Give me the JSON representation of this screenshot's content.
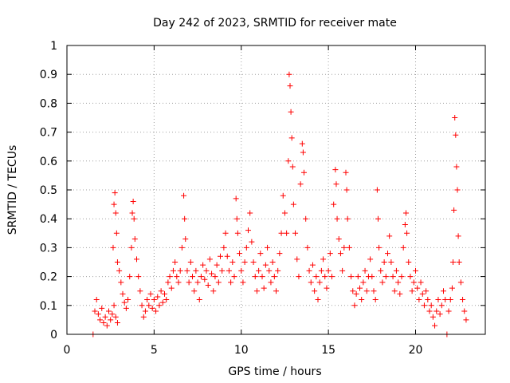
{
  "chart_data": {
    "type": "scatter",
    "title": "Day 242 of 2023, SRMTID for receiver mate",
    "xlabel": "GPS time / hours",
    "ylabel": "SRMTID / TECUs",
    "xlim": [
      0,
      24
    ],
    "ylim": [
      0,
      1
    ],
    "x_ticks": [
      "0",
      "5",
      "10",
      "15",
      "20"
    ],
    "x_tick_values": [
      0,
      5,
      10,
      15,
      20
    ],
    "y_ticks": [
      "0",
      "0.1",
      "0.2",
      "0.3",
      "0.4",
      "0.5",
      "0.6",
      "0.7",
      "0.8",
      "0.9",
      "1"
    ],
    "y_tick_values": [
      0,
      0.1,
      0.2,
      0.3,
      0.4,
      0.5,
      0.6,
      0.7,
      0.8,
      0.9,
      1
    ],
    "grid": true,
    "marker": "+",
    "color": "#ff0000",
    "series": [
      {
        "name": "SRMTID",
        "points": [
          [
            1.5,
            0.0
          ],
          [
            1.6,
            0.08
          ],
          [
            1.7,
            0.12
          ],
          [
            1.8,
            0.07
          ],
          [
            1.9,
            0.05
          ],
          [
            2.0,
            0.09
          ],
          [
            2.1,
            0.04
          ],
          [
            2.2,
            0.06
          ],
          [
            2.3,
            0.03
          ],
          [
            2.4,
            0.08
          ],
          [
            2.5,
            0.05
          ],
          [
            2.6,
            0.07
          ],
          [
            2.7,
            0.1
          ],
          [
            2.8,
            0.06
          ],
          [
            2.9,
            0.04
          ],
          [
            2.65,
            0.3
          ],
          [
            2.7,
            0.45
          ],
          [
            2.75,
            0.49
          ],
          [
            2.8,
            0.42
          ],
          [
            2.85,
            0.35
          ],
          [
            2.9,
            0.25
          ],
          [
            3.0,
            0.22
          ],
          [
            3.1,
            0.18
          ],
          [
            3.2,
            0.14
          ],
          [
            3.3,
            0.11
          ],
          [
            3.4,
            0.09
          ],
          [
            3.5,
            0.12
          ],
          [
            3.6,
            0.2
          ],
          [
            3.7,
            0.3
          ],
          [
            3.75,
            0.42
          ],
          [
            3.8,
            0.46
          ],
          [
            3.85,
            0.4
          ],
          [
            3.9,
            0.33
          ],
          [
            4.0,
            0.26
          ],
          [
            4.1,
            0.2
          ],
          [
            4.2,
            0.15
          ],
          [
            4.3,
            0.1
          ],
          [
            4.4,
            0.06
          ],
          [
            4.5,
            0.08
          ],
          [
            4.6,
            0.12
          ],
          [
            4.7,
            0.1
          ],
          [
            4.8,
            0.14
          ],
          [
            4.9,
            0.09
          ],
          [
            5.0,
            0.12
          ],
          [
            5.1,
            0.08
          ],
          [
            5.2,
            0.13
          ],
          [
            5.3,
            0.1
          ],
          [
            5.4,
            0.15
          ],
          [
            5.5,
            0.11
          ],
          [
            5.6,
            0.14
          ],
          [
            5.7,
            0.12
          ],
          [
            5.8,
            0.18
          ],
          [
            5.9,
            0.2
          ],
          [
            6.0,
            0.16
          ],
          [
            6.1,
            0.22
          ],
          [
            6.2,
            0.25
          ],
          [
            6.3,
            0.2
          ],
          [
            6.4,
            0.18
          ],
          [
            6.5,
            0.22
          ],
          [
            6.6,
            0.3
          ],
          [
            6.7,
            0.48
          ],
          [
            6.75,
            0.4
          ],
          [
            6.8,
            0.33
          ],
          [
            6.9,
            0.22
          ],
          [
            7.0,
            0.18
          ],
          [
            7.1,
            0.25
          ],
          [
            7.2,
            0.2
          ],
          [
            7.3,
            0.15
          ],
          [
            7.4,
            0.22
          ],
          [
            7.5,
            0.18
          ],
          [
            7.6,
            0.12
          ],
          [
            7.7,
            0.2
          ],
          [
            7.8,
            0.24
          ],
          [
            7.9,
            0.19
          ],
          [
            8.0,
            0.22
          ],
          [
            8.1,
            0.17
          ],
          [
            8.2,
            0.26
          ],
          [
            8.3,
            0.21
          ],
          [
            8.4,
            0.15
          ],
          [
            8.5,
            0.2
          ],
          [
            8.6,
            0.24
          ],
          [
            8.7,
            0.18
          ],
          [
            8.8,
            0.27
          ],
          [
            8.9,
            0.22
          ],
          [
            9.0,
            0.3
          ],
          [
            9.1,
            0.35
          ],
          [
            9.2,
            0.27
          ],
          [
            9.3,
            0.22
          ],
          [
            9.4,
            0.18
          ],
          [
            9.5,
            0.25
          ],
          [
            9.6,
            0.2
          ],
          [
            9.7,
            0.47
          ],
          [
            9.75,
            0.4
          ],
          [
            9.8,
            0.35
          ],
          [
            9.9,
            0.28
          ],
          [
            10.0,
            0.22
          ],
          [
            10.1,
            0.18
          ],
          [
            10.2,
            0.25
          ],
          [
            10.3,
            0.3
          ],
          [
            10.4,
            0.36
          ],
          [
            10.5,
            0.42
          ],
          [
            10.6,
            0.32
          ],
          [
            10.7,
            0.25
          ],
          [
            10.8,
            0.2
          ],
          [
            10.9,
            0.15
          ],
          [
            11.0,
            0.22
          ],
          [
            11.1,
            0.28
          ],
          [
            11.2,
            0.2
          ],
          [
            11.3,
            0.16
          ],
          [
            11.4,
            0.24
          ],
          [
            11.5,
            0.3
          ],
          [
            11.6,
            0.22
          ],
          [
            11.7,
            0.18
          ],
          [
            11.8,
            0.25
          ],
          [
            11.9,
            0.2
          ],
          [
            12.0,
            0.15
          ],
          [
            12.1,
            0.22
          ],
          [
            12.2,
            0.28
          ],
          [
            12.3,
            0.35
          ],
          [
            12.4,
            0.48
          ],
          [
            12.5,
            0.42
          ],
          [
            12.6,
            0.35
          ],
          [
            12.7,
            0.6
          ],
          [
            12.75,
            0.9
          ],
          [
            12.8,
            0.86
          ],
          [
            12.85,
            0.77
          ],
          [
            12.9,
            0.68
          ],
          [
            12.95,
            0.58
          ],
          [
            13.0,
            0.45
          ],
          [
            13.1,
            0.35
          ],
          [
            13.2,
            0.26
          ],
          [
            13.3,
            0.2
          ],
          [
            13.4,
            0.52
          ],
          [
            13.5,
            0.66
          ],
          [
            13.55,
            0.63
          ],
          [
            13.6,
            0.56
          ],
          [
            13.7,
            0.4
          ],
          [
            13.8,
            0.3
          ],
          [
            13.9,
            0.22
          ],
          [
            14.0,
            0.18
          ],
          [
            14.1,
            0.24
          ],
          [
            14.2,
            0.15
          ],
          [
            14.3,
            0.2
          ],
          [
            14.4,
            0.12
          ],
          [
            14.5,
            0.18
          ],
          [
            14.6,
            0.22
          ],
          [
            14.7,
            0.26
          ],
          [
            14.8,
            0.2
          ],
          [
            14.9,
            0.16
          ],
          [
            15.0,
            0.22
          ],
          [
            15.1,
            0.28
          ],
          [
            15.2,
            0.2
          ],
          [
            15.3,
            0.45
          ],
          [
            15.4,
            0.57
          ],
          [
            15.45,
            0.52
          ],
          [
            15.5,
            0.4
          ],
          [
            15.6,
            0.33
          ],
          [
            15.7,
            0.28
          ],
          [
            15.8,
            0.22
          ],
          [
            15.9,
            0.3
          ],
          [
            16.0,
            0.56
          ],
          [
            16.05,
            0.5
          ],
          [
            16.1,
            0.4
          ],
          [
            16.2,
            0.3
          ],
          [
            16.3,
            0.2
          ],
          [
            16.4,
            0.15
          ],
          [
            16.5,
            0.1
          ],
          [
            16.6,
            0.14
          ],
          [
            16.7,
            0.2
          ],
          [
            16.8,
            0.16
          ],
          [
            16.9,
            0.12
          ],
          [
            17.0,
            0.18
          ],
          [
            17.1,
            0.22
          ],
          [
            17.2,
            0.15
          ],
          [
            17.3,
            0.2
          ],
          [
            17.4,
            0.26
          ],
          [
            17.5,
            0.2
          ],
          [
            17.6,
            0.15
          ],
          [
            17.7,
            0.12
          ],
          [
            17.8,
            0.5
          ],
          [
            17.85,
            0.4
          ],
          [
            17.9,
            0.3
          ],
          [
            18.0,
            0.22
          ],
          [
            18.1,
            0.18
          ],
          [
            18.2,
            0.25
          ],
          [
            18.3,
            0.2
          ],
          [
            18.4,
            0.28
          ],
          [
            18.5,
            0.34
          ],
          [
            18.6,
            0.25
          ],
          [
            18.7,
            0.2
          ],
          [
            18.8,
            0.15
          ],
          [
            18.9,
            0.22
          ],
          [
            19.0,
            0.18
          ],
          [
            19.1,
            0.14
          ],
          [
            19.2,
            0.2
          ],
          [
            19.3,
            0.3
          ],
          [
            19.4,
            0.38
          ],
          [
            19.45,
            0.42
          ],
          [
            19.5,
            0.35
          ],
          [
            19.6,
            0.25
          ],
          [
            19.7,
            0.2
          ],
          [
            19.8,
            0.15
          ],
          [
            19.9,
            0.18
          ],
          [
            20.0,
            0.22
          ],
          [
            20.1,
            0.16
          ],
          [
            20.2,
            0.12
          ],
          [
            20.3,
            0.18
          ],
          [
            20.4,
            0.14
          ],
          [
            20.5,
            0.1
          ],
          [
            20.6,
            0.15
          ],
          [
            20.7,
            0.12
          ],
          [
            20.8,
            0.08
          ],
          [
            20.9,
            0.1
          ],
          [
            21.0,
            0.06
          ],
          [
            21.1,
            0.03
          ],
          [
            21.2,
            0.08
          ],
          [
            21.3,
            0.12
          ],
          [
            21.4,
            0.07
          ],
          [
            21.5,
            0.1
          ],
          [
            21.6,
            0.15
          ],
          [
            21.7,
            0.12
          ],
          [
            21.8,
            0.0
          ],
          [
            21.9,
            0.08
          ],
          [
            22.0,
            0.12
          ],
          [
            22.1,
            0.16
          ],
          [
            22.15,
            0.25
          ],
          [
            22.2,
            0.43
          ],
          [
            22.25,
            0.75
          ],
          [
            22.3,
            0.69
          ],
          [
            22.35,
            0.58
          ],
          [
            22.4,
            0.5
          ],
          [
            22.45,
            0.34
          ],
          [
            22.5,
            0.25
          ],
          [
            22.6,
            0.18
          ],
          [
            22.7,
            0.12
          ],
          [
            22.8,
            0.08
          ],
          [
            22.9,
            0.05
          ]
        ]
      }
    ]
  }
}
